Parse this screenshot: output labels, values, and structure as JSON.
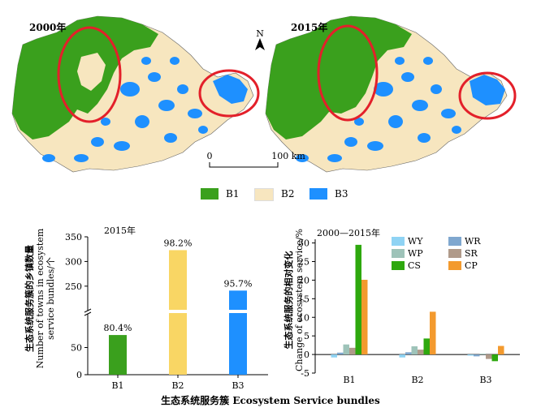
{
  "maps": {
    "left_label": "2000年",
    "right_label": "2015年",
    "north": "N",
    "scale_start": "0",
    "scale_end": "100 km"
  },
  "map_legend": [
    {
      "label": "B1",
      "color": "#3aa01d"
    },
    {
      "label": "B2",
      "color": "#f7e6bf"
    },
    {
      "label": "B3",
      "color": "#1e90ff"
    }
  ],
  "xlabel_shared": "生态系统服务簇 Ecosystem Service bundles",
  "chart_data": [
    {
      "type": "bar",
      "title": "2015年",
      "ylabel_cn": "生态系统服务簇的乡镇数量",
      "ylabel_en1": "Number of towns in ecosystem",
      "ylabel_en2": "service bundles/个",
      "categories": [
        "B1",
        "B2",
        "B3"
      ],
      "values": [
        73,
        323,
        241
      ],
      "colors": [
        "#3aa01d",
        "#f9d664",
        "#1e90ff"
      ],
      "data_labels": [
        "80.4%",
        "98.2%",
        "95.7%"
      ],
      "yticks": [
        "0",
        "50",
        "250",
        "300",
        "350"
      ],
      "ylim_lower": [
        0,
        100
      ],
      "ylim_upper": [
        230,
        350
      ]
    },
    {
      "type": "bar",
      "title": "2000—2015年",
      "ylabel_cn": "生态系统服务的相对变化",
      "ylabel_en": "Change of ecosystem service/%",
      "categories": [
        "B1",
        "B2",
        "B3"
      ],
      "series": [
        {
          "name": "WY",
          "color": "#8fd3f4",
          "values": [
            -0.8,
            -0.8,
            -0.3
          ]
        },
        {
          "name": "WR",
          "color": "#7fa7cf",
          "values": [
            0.5,
            0.6,
            -0.5
          ]
        },
        {
          "name": "WP",
          "color": "#9ec3b9",
          "values": [
            2.7,
            2.2,
            0.2
          ]
        },
        {
          "name": "SR",
          "color": "#b09a8a",
          "values": [
            1.8,
            1.3,
            -1.2
          ]
        },
        {
          "name": "CS",
          "color": "#2ea80e",
          "values": [
            29.5,
            4.3,
            -1.8
          ]
        },
        {
          "name": "CP",
          "color": "#f39a2e",
          "values": [
            20.1,
            11.5,
            2.3
          ]
        }
      ],
      "yticks": [
        "-5",
        "0",
        "5",
        "10",
        "15",
        "20",
        "25",
        "30"
      ],
      "ylim": [
        -5,
        31
      ]
    }
  ]
}
